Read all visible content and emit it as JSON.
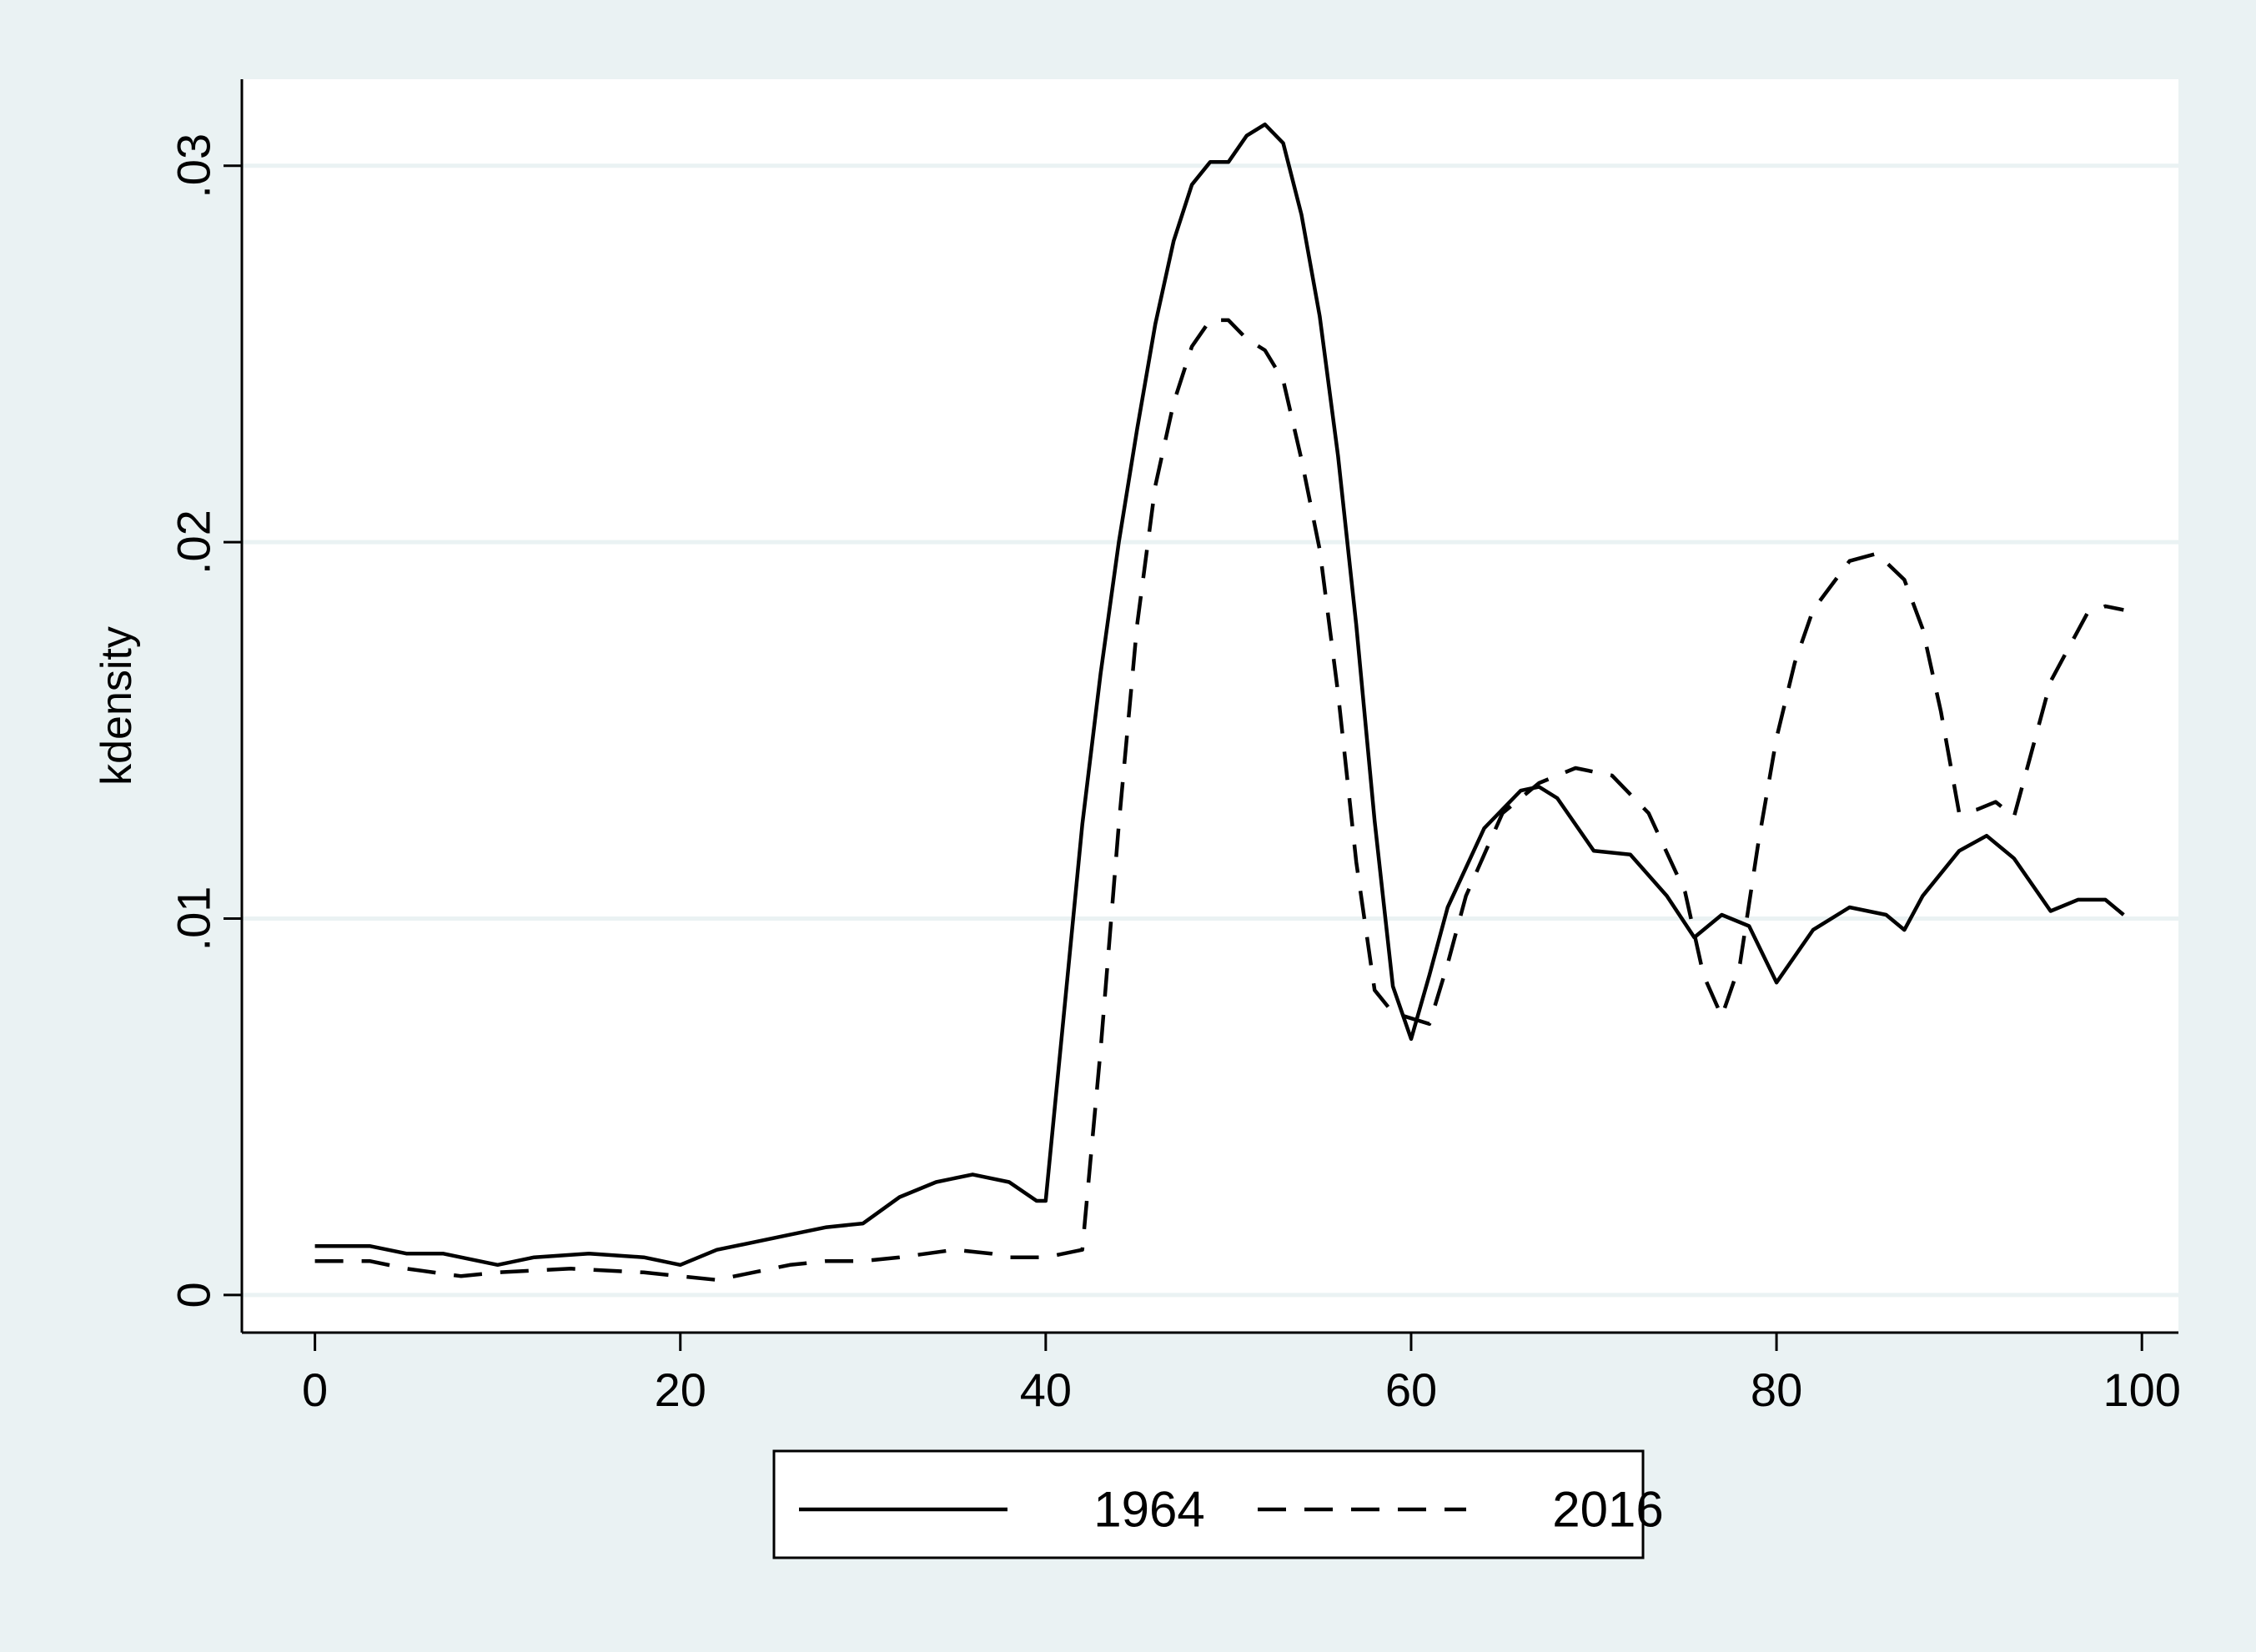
{
  "chart_data": {
    "type": "line",
    "title": "",
    "xlabel": "",
    "ylabel": "kdensity",
    "xlim": [
      -4,
      102
    ],
    "ylim": [
      -0.001,
      0.0323
    ],
    "xticks": [
      0,
      20,
      40,
      60,
      80,
      100
    ],
    "xtick_labels": [
      "0",
      "20",
      "40",
      "60",
      "80",
      "100"
    ],
    "yticks": [
      0,
      0.01,
      0.02,
      0.03
    ],
    "ytick_labels": [
      "0",
      ".01",
      ".02",
      ".03"
    ],
    "grid": "horizontal",
    "legend_position": "bottom",
    "colors": {
      "outer_background": "#eaf2f3",
      "plot_background": "#ffffff",
      "gridline": "#eaf2f3",
      "line": "#000000"
    },
    "series": [
      {
        "name": "1964",
        "style": "solid",
        "points": [
          [
            0,
            0.0013
          ],
          [
            3,
            0.0013
          ],
          [
            5,
            0.0011
          ],
          [
            7,
            0.0011
          ],
          [
            10,
            0.0008
          ],
          [
            12,
            0.001
          ],
          [
            15,
            0.0011
          ],
          [
            18,
            0.001
          ],
          [
            20,
            0.0008
          ],
          [
            22,
            0.0012
          ],
          [
            24,
            0.0014
          ],
          [
            26,
            0.0016
          ],
          [
            28,
            0.0018
          ],
          [
            30,
            0.0019
          ],
          [
            32,
            0.0026
          ],
          [
            34,
            0.003
          ],
          [
            36,
            0.0032
          ],
          [
            38,
            0.003
          ],
          [
            39.5,
            0.0025
          ],
          [
            40,
            0.0025
          ],
          [
            41,
            0.0075
          ],
          [
            42,
            0.0125
          ],
          [
            43,
            0.0165
          ],
          [
            44,
            0.02
          ],
          [
            45,
            0.023
          ],
          [
            46,
            0.0258
          ],
          [
            47,
            0.028
          ],
          [
            48,
            0.0295
          ],
          [
            49,
            0.0301
          ],
          [
            50,
            0.0301
          ],
          [
            51,
            0.0308
          ],
          [
            52,
            0.0311
          ],
          [
            53,
            0.0306
          ],
          [
            54,
            0.0287
          ],
          [
            55,
            0.026
          ],
          [
            56,
            0.0223
          ],
          [
            57,
            0.0178
          ],
          [
            58,
            0.0126
          ],
          [
            59,
            0.0082
          ],
          [
            60,
            0.0068
          ],
          [
            61,
            0.0085
          ],
          [
            62,
            0.0103
          ],
          [
            64,
            0.0124
          ],
          [
            66,
            0.0134
          ],
          [
            67,
            0.0135
          ],
          [
            68,
            0.0132
          ],
          [
            70,
            0.0118
          ],
          [
            72,
            0.0117
          ],
          [
            74,
            0.0106
          ],
          [
            75.5,
            0.0095
          ],
          [
            77,
            0.0101
          ],
          [
            78.5,
            0.0098
          ],
          [
            80,
            0.0083
          ],
          [
            82,
            0.0097
          ],
          [
            84,
            0.0103
          ],
          [
            86,
            0.0101
          ],
          [
            87,
            0.0097
          ],
          [
            88,
            0.0106
          ],
          [
            90,
            0.0118
          ],
          [
            91.5,
            0.0122
          ],
          [
            93,
            0.0116
          ],
          [
            95,
            0.0102
          ],
          [
            96.5,
            0.0105
          ],
          [
            98,
            0.0105
          ],
          [
            99,
            0.0101
          ]
        ]
      },
      {
        "name": "2016",
        "style": "dashed",
        "points": [
          [
            0,
            0.0009
          ],
          [
            3,
            0.0009
          ],
          [
            5,
            0.0007
          ],
          [
            8,
            0.0005
          ],
          [
            10,
            0.0006
          ],
          [
            14,
            0.0007
          ],
          [
            18,
            0.0006
          ],
          [
            20,
            0.0005
          ],
          [
            22,
            0.0004
          ],
          [
            24,
            0.0006
          ],
          [
            26,
            0.0008
          ],
          [
            28,
            0.0009
          ],
          [
            30,
            0.0009
          ],
          [
            32,
            0.001
          ],
          [
            35,
            0.0012
          ],
          [
            37,
            0.0011
          ],
          [
            38,
            0.001
          ],
          [
            40,
            0.001
          ],
          [
            42,
            0.0012
          ],
          [
            43,
            0.0065
          ],
          [
            44,
            0.0125
          ],
          [
            45,
            0.0178
          ],
          [
            46,
            0.0215
          ],
          [
            47,
            0.0237
          ],
          [
            48,
            0.0252
          ],
          [
            49,
            0.0259
          ],
          [
            50,
            0.0259
          ],
          [
            51,
            0.0254
          ],
          [
            52,
            0.0251
          ],
          [
            53,
            0.0243
          ],
          [
            54,
            0.0222
          ],
          [
            55,
            0.0198
          ],
          [
            56,
            0.016
          ],
          [
            57,
            0.0115
          ],
          [
            58,
            0.0081
          ],
          [
            59,
            0.0075
          ],
          [
            61,
            0.0072
          ],
          [
            62,
            0.0088
          ],
          [
            63,
            0.0106
          ],
          [
            65,
            0.0128
          ],
          [
            67,
            0.0136
          ],
          [
            69,
            0.014
          ],
          [
            71,
            0.0138
          ],
          [
            73,
            0.0128
          ],
          [
            75,
            0.0107
          ],
          [
            76,
            0.0085
          ],
          [
            77,
            0.0074
          ],
          [
            78,
            0.0088
          ],
          [
            79,
            0.012
          ],
          [
            80,
            0.0148
          ],
          [
            81,
            0.0168
          ],
          [
            82,
            0.0182
          ],
          [
            84,
            0.0195
          ],
          [
            85.5,
            0.0197
          ],
          [
            87,
            0.019
          ],
          [
            88,
            0.0177
          ],
          [
            89,
            0.0155
          ],
          [
            90,
            0.0128
          ],
          [
            91,
            0.0129
          ],
          [
            92,
            0.0131
          ],
          [
            93,
            0.0127
          ],
          [
            94,
            0.0145
          ],
          [
            95,
            0.0163
          ],
          [
            96,
            0.0172
          ],
          [
            97,
            0.0181
          ],
          [
            98,
            0.0183
          ],
          [
            99,
            0.0182
          ]
        ]
      }
    ]
  }
}
